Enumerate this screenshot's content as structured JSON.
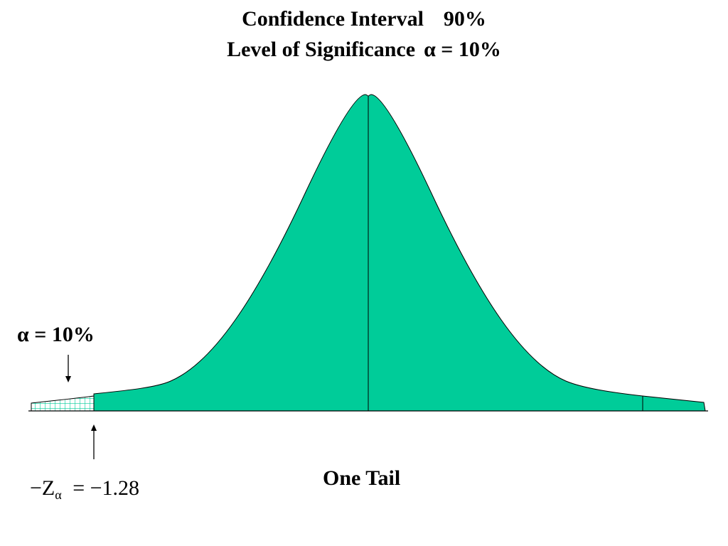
{
  "title": {
    "line1": "Confidence Interval",
    "line1_value": "90%",
    "line2": "Level of Significance",
    "line2_value": "α = 10%"
  },
  "alpha_label": "α = 10%",
  "z_label": {
    "z": "−Z",
    "sub": "α",
    "value": "= −1.28"
  },
  "tail_label": "One Tail",
  "colors": {
    "fill": "#00CC99",
    "stroke": "#000000",
    "hatch": "#00CC99"
  }
}
